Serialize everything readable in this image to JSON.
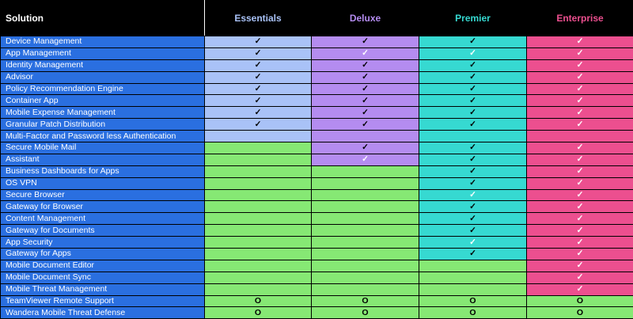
{
  "header": {
    "solution": "Solution",
    "plans": [
      {
        "label": "Essentials",
        "color": "#a9c2f7"
      },
      {
        "label": "Deluxe",
        "color": "#b48cf0"
      },
      {
        "label": "Premier",
        "color": "#36d9d1"
      },
      {
        "label": "Enterprise",
        "color": "#ec4f8f"
      }
    ]
  },
  "colors": {
    "row_label_bg": "#2a6fe0",
    "not_included_bg": "#86e874"
  },
  "symbols": {
    "check": "✓",
    "option": "O"
  },
  "rows": [
    {
      "name": "Device Management",
      "cells": [
        "check",
        "check",
        "check",
        "check"
      ]
    },
    {
      "name": "App Management",
      "cells": [
        "check",
        "check",
        "check",
        "check"
      ]
    },
    {
      "name": "Identity Management",
      "cells": [
        "check",
        "check",
        "check",
        "check"
      ]
    },
    {
      "name": "Advisor",
      "cells": [
        "check",
        "check",
        "check",
        "check"
      ]
    },
    {
      "name": "Policy Recommendation Engine",
      "cells": [
        "check",
        "check",
        "check",
        "check"
      ]
    },
    {
      "name": "Container App",
      "cells": [
        "check",
        "check",
        "check",
        "check"
      ]
    },
    {
      "name": "Mobile Expense Management",
      "cells": [
        "check",
        "check",
        "check",
        "check"
      ]
    },
    {
      "name": "Granular Patch Distribution",
      "cells": [
        "check",
        "check",
        "check",
        "check"
      ]
    },
    {
      "name": "Multi-Factor and Password less Authentication",
      "cells": [
        "blank",
        "blank",
        "blank",
        "blank"
      ]
    },
    {
      "name": "Secure Mobile Mail",
      "cells": [
        "none",
        "check",
        "check",
        "check"
      ]
    },
    {
      "name": "Assistant",
      "cells": [
        "none",
        "check",
        "check",
        "check"
      ]
    },
    {
      "name": "Business Dashboards for Apps",
      "cells": [
        "none",
        "none",
        "check",
        "check"
      ]
    },
    {
      "name": "OS VPN",
      "cells": [
        "none",
        "none",
        "check",
        "check"
      ]
    },
    {
      "name": "Secure Browser",
      "cells": [
        "none",
        "none",
        "check",
        "check"
      ]
    },
    {
      "name": "Gateway for Browser",
      "cells": [
        "none",
        "none",
        "check",
        "check"
      ]
    },
    {
      "name": "Content Management",
      "cells": [
        "none",
        "none",
        "check",
        "check"
      ]
    },
    {
      "name": "Gateway for Documents",
      "cells": [
        "none",
        "none",
        "check",
        "check"
      ]
    },
    {
      "name": "App Security",
      "cells": [
        "none",
        "none",
        "check",
        "check"
      ]
    },
    {
      "name": "Gateway for Apps",
      "cells": [
        "none",
        "none",
        "check",
        "check"
      ]
    },
    {
      "name": "Mobile Document Editor",
      "cells": [
        "none",
        "none",
        "none",
        "check"
      ]
    },
    {
      "name": "Mobile Document Sync",
      "cells": [
        "none",
        "none",
        "none",
        "check"
      ]
    },
    {
      "name": "Mobile Threat Management",
      "cells": [
        "none",
        "none",
        "none",
        "check"
      ]
    },
    {
      "name": "TeamViewer Remote Support",
      "cells": [
        "option",
        "option",
        "option",
        "option"
      ]
    },
    {
      "name": "Wandera Mobile Threat Defense",
      "cells": [
        "option",
        "option",
        "option",
        "option"
      ]
    }
  ]
}
